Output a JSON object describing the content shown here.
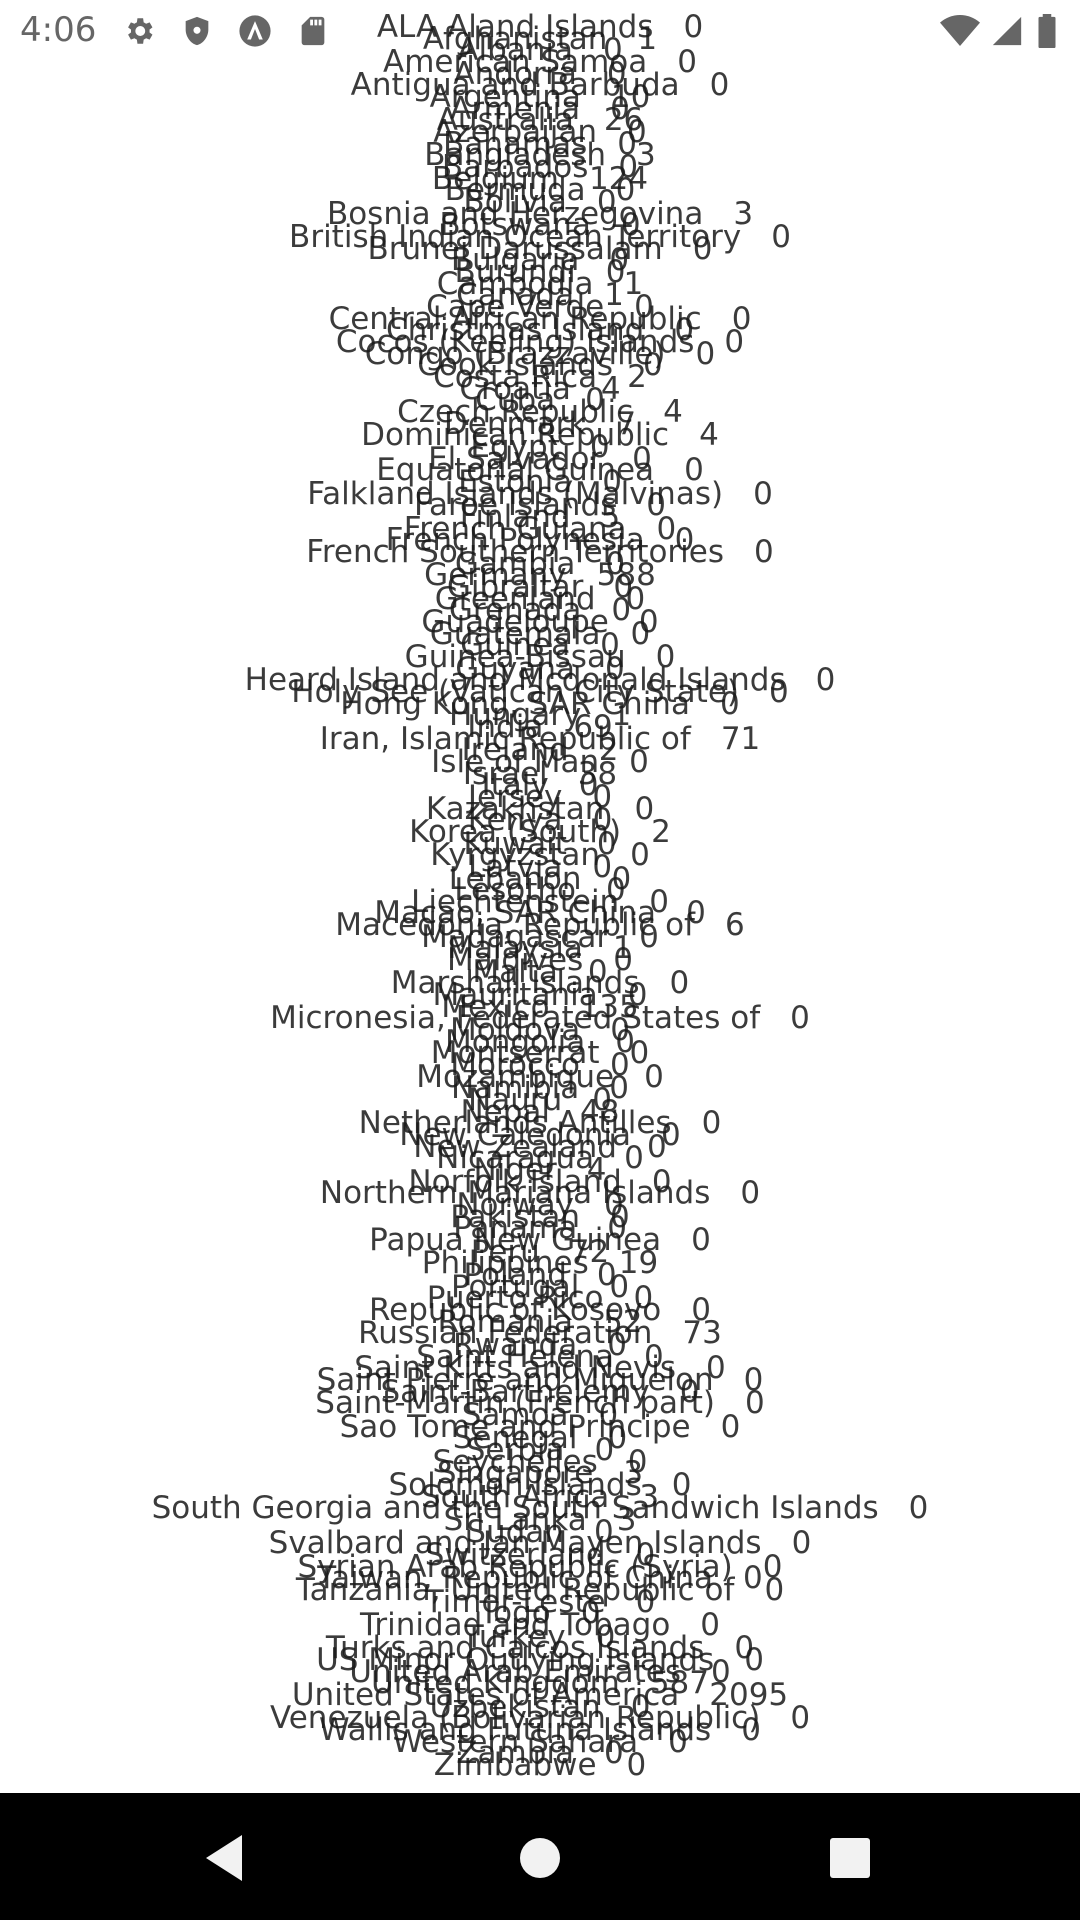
{
  "status_bar": {
    "time": "4:06",
    "left_icons": [
      "gear-icon",
      "shield-icon",
      "a-circle-icon",
      "sd-card-icon"
    ],
    "right_icons": [
      "wifi-icon",
      "signal-icon",
      "battery-icon"
    ],
    "icon_color": "#666666"
  },
  "countries": [
    {
      "name": "ALA Aland Islands",
      "count": "0"
    },
    {
      "name": "Afghanistan",
      "count": "1"
    },
    {
      "name": "Albania",
      "count": "0"
    },
    {
      "name": "American Samoa",
      "count": "0"
    },
    {
      "name": "Andorra",
      "count": "0"
    },
    {
      "name": "Antigua and Barbuda",
      "count": "0"
    },
    {
      "name": "Argentina",
      "count": "10"
    },
    {
      "name": "Armenia",
      "count": "0"
    },
    {
      "name": "Australia",
      "count": "26"
    },
    {
      "name": "Azerbaijan",
      "count": "0"
    },
    {
      "name": "Bahamas",
      "count": "0"
    },
    {
      "name": "Bangladesh",
      "count": "3"
    },
    {
      "name": "Barbados",
      "count": "0"
    },
    {
      "name": "Belgium",
      "count": "124"
    },
    {
      "name": "Bermuda",
      "count": "0"
    },
    {
      "name": "Bolivia",
      "count": "0"
    },
    {
      "name": "Bosnia and Herzegovina",
      "count": "3"
    },
    {
      "name": "Botswana",
      "count": "0"
    },
    {
      "name": "British Indian Ocean Territory",
      "count": "0"
    },
    {
      "name": "Brunei Darussalam",
      "count": "0"
    },
    {
      "name": "Bulgaria",
      "count": "0"
    },
    {
      "name": "Burundi",
      "count": "0"
    },
    {
      "name": "Cambodia",
      "count": "1"
    },
    {
      "name": "Canada",
      "count": "1"
    },
    {
      "name": "Cape Verde",
      "count": "0"
    },
    {
      "name": "Central African Republic",
      "count": "0"
    },
    {
      "name": "Christmas Island",
      "count": "0"
    },
    {
      "name": "Cocos (Keeling) Islands",
      "count": "0"
    },
    {
      "name": "Congo (Brazzaville)",
      "count": "0"
    },
    {
      "name": "Cook Islands",
      "count": "0"
    },
    {
      "name": "Costa Rica",
      "count": "2"
    },
    {
      "name": "Croatia",
      "count": "4"
    },
    {
      "name": "Cuba",
      "count": "0"
    },
    {
      "name": "Czech Republic",
      "count": "4"
    },
    {
      "name": "Denmark",
      "count": "7"
    },
    {
      "name": "Dominican Republic",
      "count": "4"
    },
    {
      "name": "Egypt",
      "count": "0"
    },
    {
      "name": "El Salvador",
      "count": "0"
    },
    {
      "name": "Equatorial Guinea",
      "count": "0"
    },
    {
      "name": "Estonia",
      "count": "0"
    },
    {
      "name": "Falkland Islands (Malvinas)",
      "count": "0"
    },
    {
      "name": "Faroe Islands",
      "count": "0"
    },
    {
      "name": "Finland",
      "count": "5"
    },
    {
      "name": "French Guiana",
      "count": "0"
    },
    {
      "name": "French Polynesia",
      "count": "0"
    },
    {
      "name": "French Southern Territories",
      "count": "0"
    },
    {
      "name": "Gambia",
      "count": "0"
    },
    {
      "name": "Germany",
      "count": "588"
    },
    {
      "name": "Gibraltar",
      "count": "0"
    },
    {
      "name": "Greenland",
      "count": "0"
    },
    {
      "name": "Grenada",
      "count": "0"
    },
    {
      "name": "Guadeloupe",
      "count": "0"
    },
    {
      "name": "Guatemala",
      "count": "0"
    },
    {
      "name": "Guinea",
      "count": "0"
    },
    {
      "name": "Guinea-Bissau",
      "count": "0"
    },
    {
      "name": "Guyana",
      "count": "0"
    },
    {
      "name": "Heard Island and Mcdonald Islands",
      "count": "0"
    },
    {
      "name": "Holy See (Vatican City State)",
      "count": "0"
    },
    {
      "name": "Hong Kong, SAR China",
      "count": "0"
    },
    {
      "name": "Hungary",
      "count": "1"
    },
    {
      "name": "India",
      "count": "69"
    },
    {
      "name": "Iran, Islamic Republic of",
      "count": "71"
    },
    {
      "name": "Ireland",
      "count": "2"
    },
    {
      "name": "Isle of Man",
      "count": "0"
    },
    {
      "name": "Israel",
      "count": "38"
    },
    {
      "name": "Italy",
      "count": "0"
    },
    {
      "name": "Jersey",
      "count": "0"
    },
    {
      "name": "Kazakhstan",
      "count": "0"
    },
    {
      "name": "Kenya",
      "count": "0"
    },
    {
      "name": "Korea (South)",
      "count": "2"
    },
    {
      "name": "Kuwait",
      "count": "0"
    },
    {
      "name": "Kyrgyzstan",
      "count": "0"
    },
    {
      "name": "Latvia",
      "count": "0"
    },
    {
      "name": "Lebanon",
      "count": "0"
    },
    {
      "name": "Lesotho",
      "count": "0"
    },
    {
      "name": "Liechtenstein",
      "count": "0"
    },
    {
      "name": "Macao, SAR China",
      "count": "0"
    },
    {
      "name": "Macedonia, Republic of",
      "count": "6"
    },
    {
      "name": "Madagascar",
      "count": "0"
    },
    {
      "name": "Malaysia",
      "count": "1"
    },
    {
      "name": "Maldives",
      "count": "0"
    },
    {
      "name": "Malta",
      "count": "0"
    },
    {
      "name": "Marshall Islands",
      "count": "0"
    },
    {
      "name": "Mauritania",
      "count": "0"
    },
    {
      "name": "Mexico",
      "count": "135"
    },
    {
      "name": "Micronesia, Federated States of",
      "count": "0"
    },
    {
      "name": "Moldova",
      "count": "0"
    },
    {
      "name": "Mongolia",
      "count": "0"
    },
    {
      "name": "Montserrat",
      "count": "0"
    },
    {
      "name": "Morocco",
      "count": "0"
    },
    {
      "name": "Mozambique",
      "count": "0"
    },
    {
      "name": "Namibia",
      "count": "0"
    },
    {
      "name": "Nauru",
      "count": "0"
    },
    {
      "name": "Nepal",
      "count": "48"
    },
    {
      "name": "Netherlands Antilles",
      "count": "0"
    },
    {
      "name": "New Caledonia",
      "count": "0"
    },
    {
      "name": "New Zealand",
      "count": "0"
    },
    {
      "name": "Nicaragua",
      "count": "0"
    },
    {
      "name": "Niger",
      "count": "4"
    },
    {
      "name": "Norfolk Island",
      "count": "0"
    },
    {
      "name": "Northern Mariana Islands",
      "count": "0"
    },
    {
      "name": "Norway",
      "count": "0"
    },
    {
      "name": "Pakistan",
      "count": "0"
    },
    {
      "name": "Panama",
      "count": "0"
    },
    {
      "name": "Papua New Guinea",
      "count": "0"
    },
    {
      "name": "Peru",
      "count": "72"
    },
    {
      "name": "Philippines",
      "count": "19"
    },
    {
      "name": "Poland",
      "count": "0"
    },
    {
      "name": "Portugal",
      "count": "0"
    },
    {
      "name": "Puerto Rico",
      "count": "0"
    },
    {
      "name": "Republic of Kosovo",
      "count": "0"
    },
    {
      "name": "Romania",
      "count": "52"
    },
    {
      "name": "Russian Federation",
      "count": "73"
    },
    {
      "name": "Rwanda",
      "count": "0"
    },
    {
      "name": "Saint Helena",
      "count": "0"
    },
    {
      "name": "Saint Kitts and Nevis",
      "count": "0"
    },
    {
      "name": "Saint Pierre and Miquelon",
      "count": "0"
    },
    {
      "name": "Saint-Barthélemy",
      "count": "0"
    },
    {
      "name": "Saint-Martin (French part)",
      "count": "0"
    },
    {
      "name": "Samoa",
      "count": "0"
    },
    {
      "name": "Sao Tome and Principe",
      "count": "0"
    },
    {
      "name": "Senegal",
      "count": "0"
    },
    {
      "name": "Serbia",
      "count": "0"
    },
    {
      "name": "Seychelles",
      "count": "0"
    },
    {
      "name": "Singapore",
      "count": "3"
    },
    {
      "name": "Solomon Islands",
      "count": "0"
    },
    {
      "name": "South Africa",
      "count": "3"
    },
    {
      "name": "South Georgia and the South Sandwich Islands",
      "count": "0"
    },
    {
      "name": "Sri Lanka",
      "count": "3"
    },
    {
      "name": "Sudan",
      "count": "0"
    },
    {
      "name": "Svalbard and Jan Mayen Islands",
      "count": "0"
    },
    {
      "name": "Switzerland",
      "count": "0"
    },
    {
      "name": "Syrian Arab Republic (Syria)",
      "count": "0"
    },
    {
      "name": "Taiwan, Republic of China",
      "count": "0"
    },
    {
      "name": "Tanzania, United Republic of",
      "count": "0"
    },
    {
      "name": "Timor-Leste",
      "count": "0"
    },
    {
      "name": "Togo",
      "count": "0"
    },
    {
      "name": "Trinidad and Tobago",
      "count": "0"
    },
    {
      "name": "Turkey",
      "count": "0"
    },
    {
      "name": "Turks and Caicos Islands",
      "count": "0"
    },
    {
      "name": "US Minor Outlying Islands",
      "count": "0"
    },
    {
      "name": "United Arab Emirates",
      "count": "0"
    },
    {
      "name": "United Kingdom",
      "count": "587"
    },
    {
      "name": "United States of America",
      "count": "2095"
    },
    {
      "name": "Uzbekistan",
      "count": "0"
    },
    {
      "name": "Venezuela (Bolivarian Republic)",
      "count": "0"
    },
    {
      "name": "Wallis and Futuna Islands",
      "count": "0"
    },
    {
      "name": "Western Sahara",
      "count": "0"
    },
    {
      "name": "Zambia",
      "count": "0"
    },
    {
      "name": "Zimbabwe",
      "count": "0"
    }
  ],
  "nav_bar": {
    "buttons": [
      "back-icon",
      "home-icon",
      "recents-icon"
    ],
    "color": "#000000"
  }
}
